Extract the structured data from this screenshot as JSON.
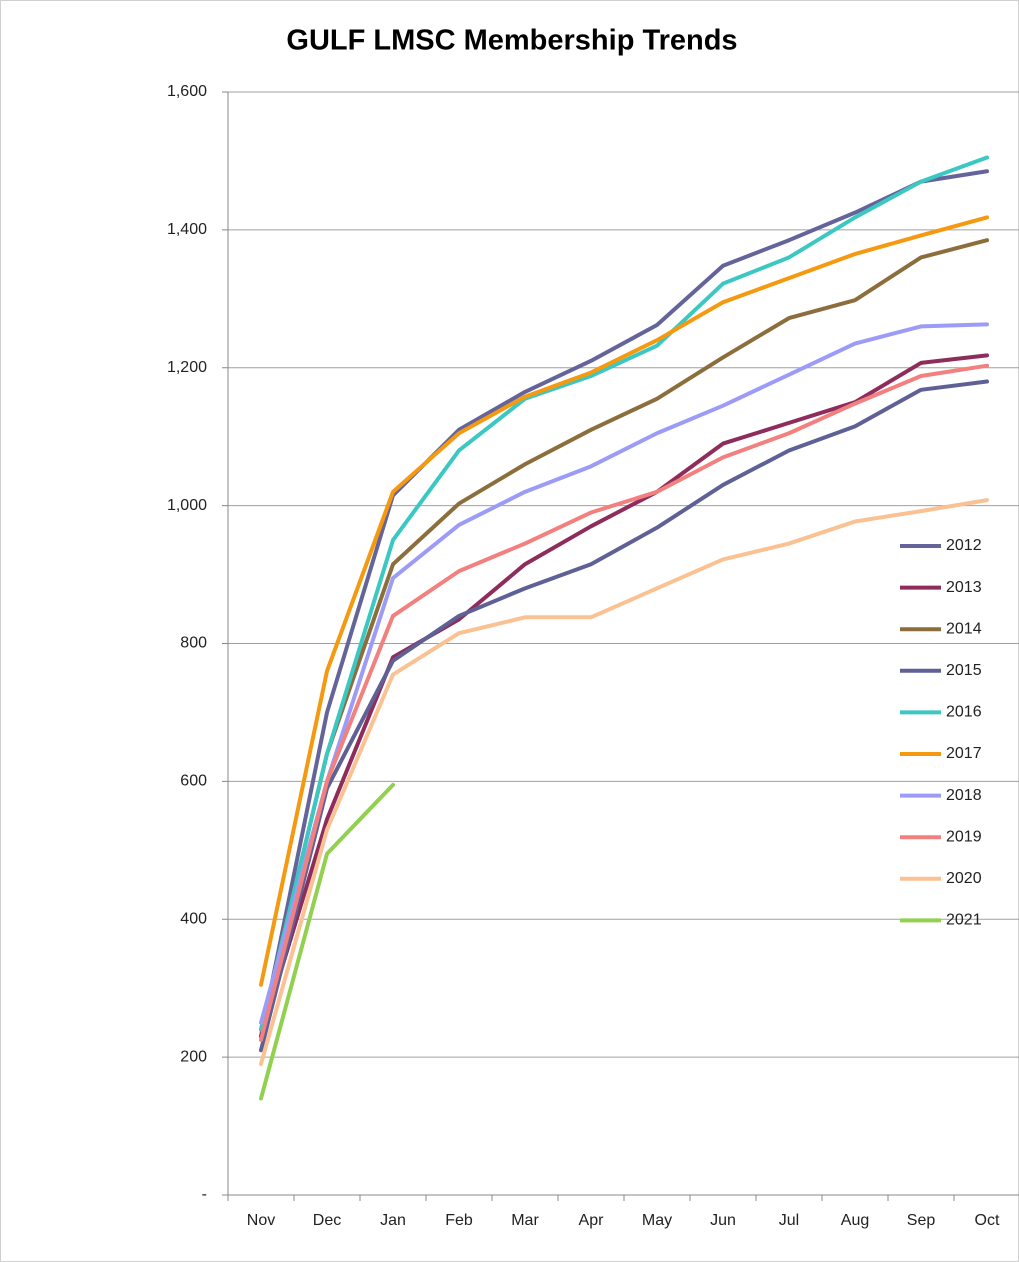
{
  "chart_data": {
    "type": "line",
    "title": "GULF LMSC Membership Trends",
    "categories": [
      "Nov",
      "Dec",
      "Jan",
      "Feb",
      "Mar",
      "Apr",
      "May",
      "Jun",
      "Jul",
      "Aug",
      "Sep",
      "Oct"
    ],
    "ylim": [
      0,
      1600
    ],
    "yticks": [
      {
        "value": 0,
        "label": "-"
      },
      200,
      400,
      600,
      800,
      {
        "value": 1000,
        "label": "1,000"
      },
      {
        "value": 1200,
        "label": "1,200"
      },
      {
        "value": 1400,
        "label": "1,400"
      },
      {
        "value": 1600,
        "label": "1,600"
      }
    ],
    "grid": true,
    "legend": "right",
    "series": [
      {
        "name": "2012",
        "color": "#64649a",
        "values": [
          230,
          700,
          1015,
          1110,
          1165,
          1210,
          1262,
          1348,
          1385,
          1425,
          1470,
          1485
        ]
      },
      {
        "name": "2013",
        "color": "#8e2c5c",
        "values": [
          230,
          545,
          780,
          835,
          915,
          970,
          1020,
          1090,
          1120,
          1150,
          1207,
          1218
        ]
      },
      {
        "name": "2014",
        "color": "#8c6d3c",
        "values": [
          240,
          640,
          915,
          1003,
          1060,
          1110,
          1155,
          1215,
          1272,
          1298,
          1360,
          1385
        ]
      },
      {
        "name": "2015",
        "color": "#5e6096",
        "values": [
          210,
          590,
          775,
          840,
          880,
          915,
          968,
          1030,
          1080,
          1115,
          1168,
          1180
        ]
      },
      {
        "name": "2016",
        "color": "#3cc8c2",
        "values": [
          240,
          640,
          950,
          1080,
          1155,
          1188,
          1232,
          1322,
          1360,
          1418,
          1470,
          1505
        ]
      },
      {
        "name": "2017",
        "color": "#f59a10",
        "values": [
          305,
          760,
          1020,
          1105,
          1158,
          1193,
          1240,
          1295,
          1330,
          1365,
          1392,
          1418
        ]
      },
      {
        "name": "2018",
        "color": "#9c9cf8",
        "values": [
          250,
          600,
          895,
          972,
          1020,
          1057,
          1105,
          1145,
          1190,
          1235,
          1260,
          1263
        ]
      },
      {
        "name": "2019",
        "color": "#f2807e",
        "values": [
          225,
          600,
          840,
          905,
          945,
          990,
          1020,
          1070,
          1105,
          1148,
          1188,
          1203
        ]
      },
      {
        "name": "2020",
        "color": "#fac292",
        "values": [
          190,
          530,
          755,
          815,
          838,
          838,
          880,
          922,
          945,
          977,
          992,
          1008
        ]
      },
      {
        "name": "2021",
        "color": "#92d050",
        "values": [
          140,
          495,
          595,
          null,
          null,
          null,
          null,
          null,
          null,
          null,
          null,
          null
        ]
      }
    ]
  }
}
